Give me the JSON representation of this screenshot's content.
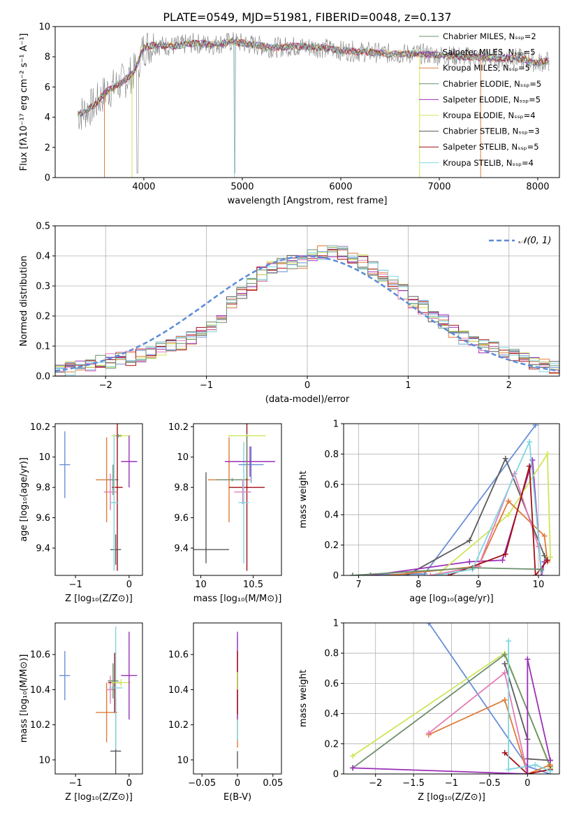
{
  "figure": {
    "title": "PLATE=0549, MJD=51981, FIBERID=0048, z=0.137"
  },
  "styles": {
    "grid_color": "#b0b0b0",
    "axis_color": "#000000",
    "colors": [
      "#6a8fd8",
      "#e07b39",
      "#5b5b5b",
      "#9b30b8",
      "#cfe55a",
      "#e57bb5",
      "#a30f16",
      "#7fd7e0",
      "#6d8f6e"
    ]
  },
  "chart_data": [
    {
      "id": "spectrum",
      "type": "line",
      "title": "PLATE=0549, MJD=51981, FIBERID=0048, z=0.137",
      "xlabel": "wavelength [Angstrom, rest frame]",
      "ylabel": "Flux [fλ10⁻¹⁷ erg cm⁻² s⁻¹ A⁻¹]",
      "xlim": [
        3100,
        8220
      ],
      "ylim": [
        0,
        10
      ],
      "xticks": [
        4000,
        5000,
        6000,
        7000,
        8000
      ],
      "yticks": [
        0,
        2,
        4,
        6,
        8,
        10
      ],
      "grid": false,
      "legend_position": "top-right",
      "data_color": "#808080",
      "series": [
        {
          "name": "Chabrier MILES, N_SSP=2",
          "color": "#6d8f6e"
        },
        {
          "name": "Salpeter MILES, N_SSP=5",
          "color": "#9b30b8"
        },
        {
          "name": "Kroupa MILES, N_SSP=5",
          "color": "#e07b39"
        },
        {
          "name": "Chabrier ELODIE, N_SSP=5",
          "color": "#6d8f6e"
        },
        {
          "name": "Salpeter ELODIE, N_SSP=5",
          "color": "#9b30b8"
        },
        {
          "name": "Kroupa ELODIE, N_SSP=4",
          "color": "#cfe55a"
        },
        {
          "name": "Chabrier STELIB, N_SSP=3",
          "color": "#5b5b5b"
        },
        {
          "name": "Salpeter STELIB, N_SSP=5",
          "color": "#a30f16"
        },
        {
          "name": "Kroupa STELIB, N_SSP=4",
          "color": "#7fd7e0"
        }
      ],
      "continuum": {
        "x": [
          3350,
          3500,
          3600,
          3700,
          3800,
          3900,
          4000,
          4100,
          4300,
          4500,
          4700,
          4900,
          5100,
          5300,
          5500,
          5800,
          6000,
          6300,
          6500,
          6800,
          7000,
          7300,
          7600,
          7800,
          8000,
          8100
        ],
        "y": [
          4.2,
          4.8,
          5.6,
          6.0,
          6.4,
          7.0,
          8.6,
          8.8,
          8.7,
          8.9,
          8.8,
          9.0,
          8.8,
          8.6,
          8.7,
          8.6,
          8.4,
          8.3,
          8.2,
          8.2,
          8.1,
          8.0,
          7.9,
          7.9,
          7.6,
          7.7
        ]
      }
    },
    {
      "id": "residuals",
      "type": "histogram",
      "xlabel": "(data-model)/error",
      "ylabel": "Normed distribution",
      "xlim": [
        -2.5,
        2.5
      ],
      "ylim": [
        0,
        0.5
      ],
      "xticks": [
        -2,
        -1,
        0,
        1,
        2
      ],
      "yticks": [
        0.0,
        0.1,
        0.2,
        0.3,
        0.4,
        0.5
      ],
      "grid": true,
      "legend_position": "top-right",
      "reference": {
        "name": "𝒩(0, 1)",
        "mean": 0,
        "sigma": 1,
        "color": "#5b8ad8"
      },
      "bin_width": 0.1,
      "bin_start": -2.5,
      "base_values": [
        0.02,
        0.025,
        0.035,
        0.04,
        0.045,
        0.05,
        0.055,
        0.06,
        0.07,
        0.08,
        0.09,
        0.1,
        0.11,
        0.13,
        0.14,
        0.17,
        0.2,
        0.24,
        0.28,
        0.31,
        0.34,
        0.36,
        0.37,
        0.38,
        0.38,
        0.4,
        0.41,
        0.42,
        0.41,
        0.4,
        0.38,
        0.36,
        0.34,
        0.31,
        0.28,
        0.25,
        0.23,
        0.2,
        0.18,
        0.15,
        0.13,
        0.11,
        0.1,
        0.09,
        0.08,
        0.065,
        0.055,
        0.045,
        0.035,
        0.03
      ]
    },
    {
      "id": "age-vs-z",
      "type": "errorbar",
      "xlabel": "Z [log₁₀(Z/Z⊙)]",
      "ylabel": "age  [log₁₀(age/yr)]",
      "xlim": [
        -1.38,
        0.25
      ],
      "ylim": [
        9.22,
        10.22
      ],
      "xticks": [
        -1,
        0
      ],
      "yticks": [
        9.4,
        9.6,
        9.8,
        10.0,
        10.2
      ],
      "grid": false,
      "points": [
        {
          "x": -1.2,
          "y": 9.95,
          "xerr": 0.1,
          "yerr": 0.22,
          "color": "#6a8fd8"
        },
        {
          "x": -0.42,
          "y": 9.85,
          "xerr": 0.2,
          "yerr": 0.28,
          "color": "#e07b39"
        },
        {
          "x": -0.3,
          "y": 9.85,
          "xerr": 0.1,
          "yerr": 0.1,
          "color": "#6d8f6e"
        },
        {
          "x": -0.22,
          "y": 9.8,
          "xerr": 0.1,
          "yerr": 0.55,
          "color": "#a30f16"
        },
        {
          "x": -0.25,
          "y": 9.39,
          "xerr": 0.1,
          "yerr": 0.1,
          "color": "#5b5b5b"
        },
        {
          "x": -0.35,
          "y": 9.77,
          "xerr": 0.12,
          "yerr": 0.12,
          "color": "#e57bb5"
        },
        {
          "x": -0.28,
          "y": 9.7,
          "xerr": 0.08,
          "yerr": 0.45,
          "color": "#7fd7e0"
        },
        {
          "x": -0.15,
          "y": 10.14,
          "xerr": 0.18,
          "yerr": 0.01,
          "color": "#cfe55a"
        },
        {
          "x": -0.2,
          "y": 10.14,
          "xerr": 0.05,
          "yerr": 0.01,
          "color": "#6d8f6e"
        },
        {
          "x": 0.0,
          "y": 9.97,
          "xerr": 0.15,
          "yerr": 0.17,
          "color": "#9b30b8"
        }
      ]
    },
    {
      "id": "age-vs-mass",
      "type": "errorbar",
      "xlabel": "mass [log₁₀(M/M⊙)]",
      "ylabel": "",
      "xlim": [
        9.93,
        10.77
      ],
      "ylim": [
        9.22,
        10.22
      ],
      "xticks": [
        10.0,
        10.5
      ],
      "yticks": [
        9.4,
        9.6,
        9.8,
        10.0,
        10.2
      ],
      "grid": false,
      "points": [
        {
          "x": 10.05,
          "y": 9.39,
          "xerr": 0.22,
          "yerr": 0.01,
          "color": "#5b5b5b"
        },
        {
          "x": 10.05,
          "y": 9.6,
          "xerr": 0.0,
          "yerr": 0.3,
          "color": "#5b5b5b"
        },
        {
          "x": 10.27,
          "y": 9.85,
          "xerr": 0.2,
          "yerr": 0.28,
          "color": "#e07b39"
        },
        {
          "x": 10.3,
          "y": 9.85,
          "xerr": 0.15,
          "yerr": 0.01,
          "color": "#6d8f6e"
        },
        {
          "x": 10.44,
          "y": 9.8,
          "xerr": 0.17,
          "yerr": 0.55,
          "color": "#a30f16"
        },
        {
          "x": 10.4,
          "y": 9.77,
          "xerr": 0.08,
          "yerr": 0.08,
          "color": "#e57bb5"
        },
        {
          "x": 10.41,
          "y": 9.7,
          "xerr": 0.05,
          "yerr": 0.4,
          "color": "#7fd7e0"
        },
        {
          "x": 10.48,
          "y": 9.95,
          "xerr": 0.12,
          "yerr": 0.12,
          "color": "#6a8fd8"
        },
        {
          "x": 10.47,
          "y": 9.97,
          "xerr": 0.24,
          "yerr": 0.1,
          "color": "#9b30b8"
        },
        {
          "x": 10.44,
          "y": 10.14,
          "xerr": 0.18,
          "yerr": 0.01,
          "color": "#cfe55a"
        },
        {
          "x": 10.44,
          "y": 10.0,
          "xerr": 0.0,
          "yerr": 0.14,
          "color": "#6d8f6e"
        }
      ]
    },
    {
      "id": "mass-weight-vs-age",
      "type": "line",
      "xlabel": "age  [log₁₀(age/yr)]",
      "ylabel": "mass weight",
      "xlim": [
        6.75,
        10.35
      ],
      "ylim": [
        0,
        1
      ],
      "xticks": [
        7,
        8,
        9,
        10
      ],
      "yticks": [
        0.0,
        0.2,
        0.4,
        0.6,
        0.8,
        1.0
      ],
      "grid": true,
      "series": [
        {
          "color": "#6a8fd8",
          "x": [
            6.9,
            8.1,
            9.95
          ],
          "y": [
            0.0,
            0.01,
            0.99
          ]
        },
        {
          "color": "#5b5b5b",
          "x": [
            7.8,
            8.85,
            9.45,
            10.1,
            10.15
          ],
          "y": [
            0.0,
            0.23,
            0.77,
            0.13,
            0.09
          ]
        },
        {
          "color": "#9b30b8",
          "x": [
            7.2,
            8.85,
            9.4,
            9.9,
            10.05,
            10.1
          ],
          "y": [
            0.0,
            0.09,
            0.1,
            0.76,
            0.0,
            0.09
          ]
        },
        {
          "color": "#cfe55a",
          "x": [
            8.3,
            9.5,
            10.15,
            10.2
          ],
          "y": [
            0.0,
            0.4,
            0.8,
            0.12
          ]
        },
        {
          "color": "#e07b39",
          "x": [
            7.5,
            9.0,
            9.5,
            10.1,
            10.15
          ],
          "y": [
            0.0,
            0.06,
            0.49,
            0.26,
            0.09
          ]
        },
        {
          "color": "#e57bb5",
          "x": [
            8.2,
            9.0,
            9.6,
            10.0
          ],
          "y": [
            0.0,
            0.06,
            0.67,
            0.19
          ]
        },
        {
          "color": "#a30f16",
          "x": [
            8.5,
            9.45,
            9.85,
            9.95,
            10.15
          ],
          "y": [
            0.0,
            0.14,
            0.72,
            0.0,
            0.1
          ]
        },
        {
          "color": "#7fd7e0",
          "x": [
            8.3,
            8.9,
            9.85,
            10.05
          ],
          "y": [
            0.0,
            0.04,
            0.88,
            0.03
          ]
        },
        {
          "color": "#6d8f6e",
          "x": [
            6.9,
            8.9,
            10.05
          ],
          "y": [
            0.0,
            0.05,
            0.04
          ]
        }
      ]
    },
    {
      "id": "mass-vs-z",
      "type": "errorbar",
      "xlabel": "Z [log₁₀(Z/Z⊙)]",
      "ylabel": "mass [log₁₀(M/M⊙)]",
      "xlim": [
        -1.38,
        0.25
      ],
      "ylim": [
        9.92,
        10.78
      ],
      "xticks": [
        -1,
        0
      ],
      "yticks": [
        10.0,
        10.2,
        10.4,
        10.6
      ],
      "grid": false,
      "points": [
        {
          "x": -1.2,
          "y": 10.48,
          "xerr": 0.1,
          "yerr": 0.14,
          "color": "#6a8fd8"
        },
        {
          "x": -0.42,
          "y": 10.27,
          "xerr": 0.2,
          "yerr": 0.17,
          "color": "#e07b39"
        },
        {
          "x": -0.35,
          "y": 10.4,
          "xerr": 0.08,
          "yerr": 0.08,
          "color": "#e57bb5"
        },
        {
          "x": -0.27,
          "y": 10.44,
          "xerr": 0.12,
          "yerr": 0.17,
          "color": "#a30f16"
        },
        {
          "x": -0.25,
          "y": 10.05,
          "xerr": 0.1,
          "yerr": 0.3,
          "color": "#5b5b5b"
        },
        {
          "x": -0.25,
          "y": 10.41,
          "xerr": 0.13,
          "yerr": 0.35,
          "color": "#7fd7e0"
        },
        {
          "x": -0.3,
          "y": 10.45,
          "xerr": 0.1,
          "yerr": 0.1,
          "color": "#6d8f6e"
        },
        {
          "x": -0.15,
          "y": 10.44,
          "xerr": 0.18,
          "yerr": 0.02,
          "color": "#cfe55a"
        },
        {
          "x": 0.0,
          "y": 10.48,
          "xerr": 0.15,
          "yerr": 0.25,
          "color": "#9b30b8"
        }
      ]
    },
    {
      "id": "mass-vs-ebv",
      "type": "errorbar",
      "xlabel": "E(B-V)",
      "ylabel": "",
      "xlim": [
        -0.062,
        0.062
      ],
      "ylim": [
        9.92,
        10.78
      ],
      "xticks": [
        -0.05,
        0.0,
        0.05
      ],
      "ytick_labels_hidden": false,
      "yticks": [
        10.0,
        10.2,
        10.4,
        10.6
      ],
      "grid": false,
      "points": [
        {
          "x": 0.0,
          "y": 10.0,
          "xerr": 0.0,
          "yerr": 0.05,
          "color": "#5b5b5b"
        },
        {
          "x": 0.0,
          "y": 10.27,
          "xerr": 0.0,
          "yerr": 0.2,
          "color": "#e07b39"
        },
        {
          "x": 0.0,
          "y": 10.41,
          "xerr": 0.0,
          "yerr": 0.3,
          "color": "#7fd7e0"
        },
        {
          "x": 0.0,
          "y": 10.48,
          "xerr": 0.0,
          "yerr": 0.25,
          "color": "#9b30b8"
        },
        {
          "x": 0.0,
          "y": 10.44,
          "xerr": 0.0,
          "yerr": 0.18,
          "color": "#a30f16"
        },
        {
          "x": 0.0,
          "y": 10.45,
          "xerr": 0.0,
          "yerr": 0.05,
          "color": "#cfe55a"
        }
      ]
    },
    {
      "id": "mass-weight-vs-z",
      "type": "line",
      "xlabel": "Z [log₁₀(Z/Z⊙)]",
      "ylabel": "mass weight",
      "xlim": [
        -2.42,
        0.42
      ],
      "ylim": [
        0,
        1
      ],
      "xticks": [
        -2.0,
        -1.5,
        -1.0,
        -0.5,
        0.0
      ],
      "yticks": [
        0.0,
        0.2,
        0.4,
        0.6,
        0.8,
        1.0
      ],
      "grid": true,
      "series": [
        {
          "color": "#6a8fd8",
          "x": [
            -1.3,
            0.0,
            0.3
          ],
          "y": [
            1.0,
            0.05,
            0.0
          ]
        },
        {
          "color": "#cfe55a",
          "x": [
            -2.3,
            -0.3,
            0.3
          ],
          "y": [
            0.12,
            0.8,
            0.04
          ]
        },
        {
          "color": "#6d8f6e",
          "x": [
            -2.3,
            -0.3,
            0.3
          ],
          "y": [
            0.04,
            0.79,
            0.05
          ]
        },
        {
          "color": "#5b5b5b",
          "x": [
            -0.3,
            0.0,
            0.0,
            0.3
          ],
          "y": [
            0.73,
            0.23,
            0.1,
            0.09
          ]
        },
        {
          "color": "#e07b39",
          "x": [
            -1.3,
            -0.3,
            0.0,
            0.3
          ],
          "y": [
            0.26,
            0.49,
            0.0,
            0.06
          ]
        },
        {
          "color": "#e57bb5",
          "x": [
            -1.3,
            -0.3,
            0.0
          ],
          "y": [
            0.27,
            0.67,
            0.0
          ]
        },
        {
          "color": "#a30f16",
          "x": [
            -0.3,
            0.0,
            0.3
          ],
          "y": [
            0.14,
            0.0,
            0.03
          ]
        },
        {
          "color": "#7fd7e0",
          "x": [
            -0.25,
            -0.25,
            0.1,
            0.3
          ],
          "y": [
            0.88,
            0.03,
            0.06,
            0.02
          ]
        },
        {
          "color": "#9b30b8",
          "x": [
            -2.3,
            0.0,
            0.0,
            0.3
          ],
          "y": [
            0.04,
            0.0,
            0.76,
            0.09
          ]
        }
      ]
    }
  ]
}
